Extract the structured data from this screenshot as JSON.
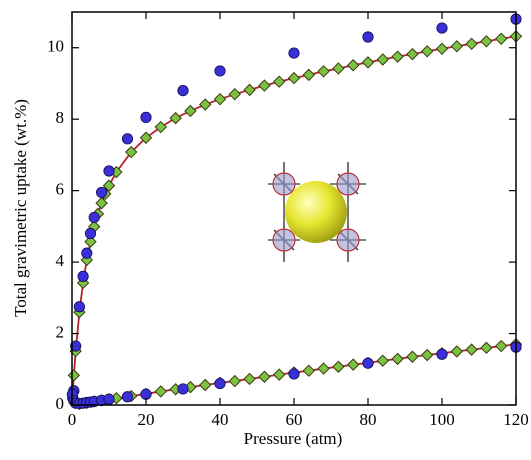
{
  "chart_data": {
    "type": "scatter",
    "xlabel": "Pressure (atm)",
    "ylabel": "Total gravimetric uptake (wt.%)",
    "xlim": [
      0,
      120
    ],
    "xticks": [
      0,
      20,
      40,
      60,
      80,
      100,
      120
    ],
    "ylim": [
      0,
      11
    ],
    "yticks": [
      0,
      2,
      4,
      6,
      8,
      10
    ],
    "series": [
      {
        "marker": "line",
        "color": "#b3232e",
        "x": [
          0,
          0.5,
          1,
          2,
          3,
          4,
          5,
          6,
          7,
          8,
          9,
          10,
          12,
          16,
          20,
          24,
          28,
          32,
          36,
          40,
          44,
          48,
          52,
          56,
          60,
          64,
          68,
          72,
          76,
          80,
          84,
          88,
          92,
          96,
          100,
          104,
          108,
          112,
          116,
          120
        ],
        "values": [
          0,
          0.83,
          1.51,
          2.6,
          3.42,
          4.06,
          4.57,
          4.99,
          5.35,
          5.65,
          5.91,
          6.14,
          6.52,
          7.08,
          7.48,
          7.78,
          8.03,
          8.23,
          8.41,
          8.56,
          8.7,
          8.82,
          8.94,
          9.05,
          9.15,
          9.24,
          9.34,
          9.42,
          9.51,
          9.59,
          9.67,
          9.75,
          9.82,
          9.9,
          9.97,
          10.04,
          10.11,
          10.18,
          10.25,
          10.32
        ]
      },
      {
        "marker": "line",
        "color": "#b3232e",
        "x": [
          0,
          0.5,
          1,
          2,
          4,
          6,
          8,
          10,
          12,
          16,
          20,
          24,
          28,
          32,
          36,
          40,
          44,
          48,
          52,
          56,
          60,
          64,
          68,
          72,
          76,
          80,
          84,
          88,
          92,
          96,
          100,
          104,
          108,
          112,
          116,
          120
        ],
        "values": [
          0.4,
          0.15,
          0.05,
          0.03,
          0.06,
          0.1,
          0.13,
          0.16,
          0.19,
          0.25,
          0.31,
          0.38,
          0.44,
          0.5,
          0.56,
          0.62,
          0.67,
          0.73,
          0.79,
          0.85,
          0.91,
          0.96,
          1.02,
          1.07,
          1.13,
          1.18,
          1.24,
          1.29,
          1.35,
          1.4,
          1.45,
          1.5,
          1.55,
          1.6,
          1.65,
          1.7
        ]
      },
      {
        "marker": "diamond",
        "color": "#7cc242",
        "x": [
          0.5,
          1,
          2,
          3,
          4,
          5,
          6,
          7,
          8,
          9,
          10,
          12,
          16,
          20,
          24,
          28,
          32,
          36,
          40,
          44,
          48,
          52,
          56,
          60,
          64,
          68,
          72,
          76,
          80,
          84,
          88,
          92,
          96,
          100,
          104,
          108,
          112,
          116,
          120
        ],
        "values": [
          0.83,
          1.51,
          2.6,
          3.42,
          4.06,
          4.57,
          4.99,
          5.35,
          5.65,
          5.91,
          6.14,
          6.52,
          7.08,
          7.48,
          7.78,
          8.03,
          8.23,
          8.41,
          8.56,
          8.7,
          8.82,
          8.94,
          9.05,
          9.15,
          9.24,
          9.34,
          9.42,
          9.51,
          9.59,
          9.67,
          9.75,
          9.82,
          9.9,
          9.97,
          10.04,
          10.11,
          10.18,
          10.25,
          10.32
        ]
      },
      {
        "marker": "diamond",
        "color": "#7cc242",
        "x": [
          2,
          4,
          6,
          8,
          10,
          12,
          16,
          20,
          24,
          28,
          32,
          36,
          40,
          44,
          48,
          52,
          56,
          60,
          64,
          68,
          72,
          76,
          80,
          84,
          88,
          92,
          96,
          100,
          104,
          108,
          112,
          116,
          120
        ],
        "values": [
          0.03,
          0.06,
          0.1,
          0.13,
          0.16,
          0.19,
          0.25,
          0.31,
          0.38,
          0.44,
          0.5,
          0.56,
          0.62,
          0.67,
          0.73,
          0.79,
          0.85,
          0.91,
          0.96,
          1.02,
          1.07,
          1.13,
          1.18,
          1.24,
          1.29,
          1.35,
          1.4,
          1.45,
          1.5,
          1.55,
          1.6,
          1.65,
          1.7
        ]
      },
      {
        "marker": "circle",
        "color": "#3a2fd8",
        "x": [
          0.2,
          0.5,
          1,
          2,
          3,
          4,
          5,
          6,
          8,
          10,
          15,
          20,
          30,
          40,
          60,
          80,
          100,
          120
        ],
        "values": [
          0.2,
          0.4,
          1.65,
          2.75,
          3.6,
          4.25,
          4.8,
          5.25,
          5.95,
          6.55,
          7.45,
          8.05,
          8.8,
          9.35,
          9.85,
          10.3,
          10.55,
          10.8
        ]
      },
      {
        "marker": "circle",
        "color": "#3a2fd8",
        "x": [
          0.1,
          0.5,
          1,
          2,
          3,
          4,
          5,
          6,
          8,
          10,
          15,
          20,
          30,
          40,
          60,
          80,
          100,
          120
        ],
        "values": [
          0.3,
          0.12,
          0.05,
          0.04,
          0.05,
          0.07,
          0.08,
          0.1,
          0.13,
          0.16,
          0.23,
          0.3,
          0.45,
          0.6,
          0.87,
          1.17,
          1.42,
          1.62
        ]
      }
    ]
  }
}
